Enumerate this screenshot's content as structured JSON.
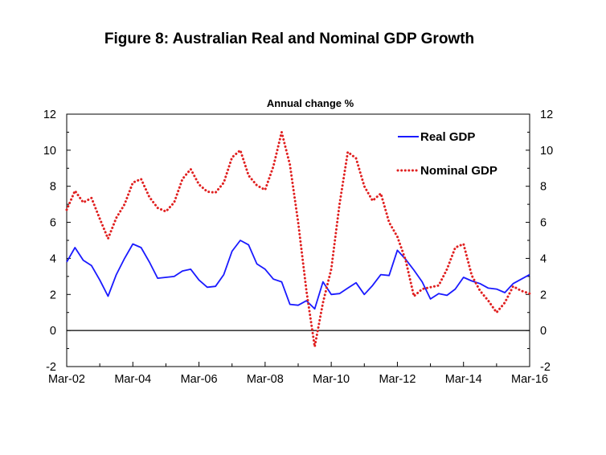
{
  "chart_data": {
    "type": "line",
    "title": "Figure 8: Australian Real and Nominal GDP Growth",
    "ylabel": "Annual change %",
    "ylim": [
      -2,
      12
    ],
    "y_ticks": [
      "-2",
      "0",
      "2",
      "4",
      "6",
      "8",
      "10",
      "12"
    ],
    "x_ticks": [
      "Mar-02",
      "Mar-04",
      "Mar-06",
      "Mar-08",
      "Mar-10",
      "Mar-12",
      "Mar-14",
      "Mar-16"
    ],
    "x_start": "Mar-02",
    "x_end": "Mar-16",
    "legend_position": "top-right",
    "grid": false,
    "series": [
      {
        "name": "Real GDP",
        "color": "#1a1aff",
        "style": "solid",
        "values": [
          3.8,
          4.6,
          3.9,
          3.6,
          2.8,
          1.9,
          3.1,
          4.0,
          4.8,
          4.6,
          3.8,
          2.9,
          2.95,
          3.0,
          3.3,
          3.4,
          2.8,
          2.4,
          2.45,
          3.1,
          4.4,
          5.0,
          4.75,
          3.7,
          3.4,
          2.85,
          2.7,
          1.45,
          1.4,
          1.65,
          1.2,
          2.7,
          2.0,
          2.05,
          2.35,
          2.65,
          2.0,
          2.5,
          3.1,
          3.05,
          4.45,
          3.95,
          3.35,
          2.7,
          1.75,
          2.05,
          1.95,
          2.3,
          2.95,
          2.75,
          2.6,
          2.35,
          2.3,
          2.1,
          2.6,
          2.85,
          3.1
        ]
      },
      {
        "name": "Nominal GDP",
        "color": "#e02020",
        "style": "dotted",
        "values": [
          6.7,
          7.75,
          7.1,
          7.35,
          6.2,
          5.1,
          6.25,
          7.0,
          8.2,
          8.4,
          7.4,
          6.8,
          6.6,
          7.1,
          8.4,
          8.95,
          8.1,
          7.7,
          7.65,
          8.2,
          9.6,
          10.0,
          8.6,
          8.05,
          7.8,
          9.1,
          11.0,
          9.2,
          6.0,
          2.2,
          -0.9,
          1.55,
          3.4,
          7.0,
          9.9,
          9.55,
          8.0,
          7.2,
          7.6,
          6.0,
          5.2,
          3.9,
          1.9,
          2.3,
          2.4,
          2.5,
          3.4,
          4.6,
          4.8,
          3.05,
          2.2,
          1.65,
          1.0,
          1.55,
          2.45,
          2.2,
          2.05
        ]
      }
    ]
  }
}
